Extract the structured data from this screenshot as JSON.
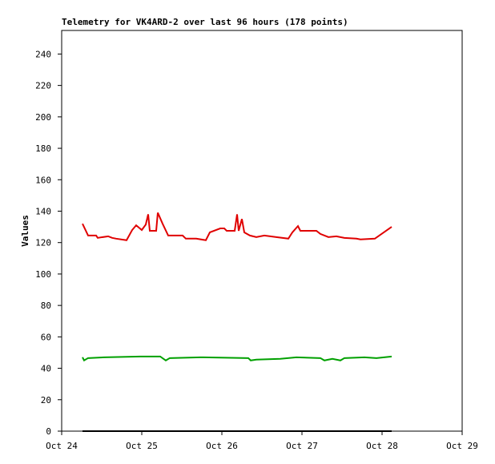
{
  "chart_data": {
    "type": "line",
    "title": "Telemetry for VK4ARD-2 over last 96 hours (178 points)",
    "y_label": "Values",
    "xlim": [
      24,
      29
    ],
    "xticks": [
      {
        "value": 24,
        "label": "Oct 24"
      },
      {
        "value": 25,
        "label": "Oct 25"
      },
      {
        "value": 26,
        "label": "Oct 26"
      },
      {
        "value": 27,
        "label": "Oct 27"
      },
      {
        "value": 28,
        "label": "Oct 28"
      },
      {
        "value": 29,
        "label": "Oct 29"
      }
    ],
    "ylim": [
      0,
      255
    ],
    "yticks": [
      0,
      20,
      40,
      60,
      80,
      100,
      120,
      140,
      160,
      180,
      200,
      220,
      240
    ],
    "series": [
      {
        "color": "#e00000",
        "x": [
          24.26,
          24.33,
          24.43,
          24.45,
          24.58,
          24.63,
          24.68,
          24.81,
          24.88,
          24.93,
          25.0,
          25.05,
          25.08,
          25.1,
          25.18,
          25.2,
          25.26,
          25.33,
          25.51,
          25.55,
          25.68,
          25.8,
          25.85,
          25.98,
          26.03,
          26.06,
          26.16,
          26.19,
          26.21,
          26.25,
          26.28,
          26.35,
          26.43,
          26.53,
          26.68,
          26.83,
          26.88,
          26.95,
          26.98,
          27.18,
          27.23,
          27.33,
          27.43,
          27.53,
          27.68,
          27.73,
          27.91,
          28.12
        ],
        "values": [
          132,
          124.5,
          124.5,
          123,
          124,
          123,
          122.5,
          121.5,
          128,
          131,
          128,
          131.5,
          138,
          127.5,
          127.5,
          139,
          132,
          124.5,
          124.5,
          122.5,
          122.5,
          121.5,
          126.5,
          129,
          129,
          127.5,
          127.5,
          138,
          127.5,
          135,
          126.5,
          124.5,
          123.5,
          124.5,
          123.5,
          122.5,
          126.5,
          130.5,
          127.5,
          127.5,
          125.5,
          123.5,
          124,
          123,
          122.5,
          122,
          122.5,
          130
        ]
      },
      {
        "color": "#00a000",
        "x": [
          24.26,
          24.28,
          24.33,
          24.53,
          24.98,
          25.23,
          25.3,
          25.35,
          25.73,
          26.33,
          26.36,
          26.43,
          26.73,
          26.93,
          27.23,
          27.28,
          27.38,
          27.48,
          27.53,
          27.78,
          27.93,
          28.12
        ],
        "values": [
          47,
          45,
          46.5,
          47,
          47.5,
          47.5,
          45,
          46.5,
          47,
          46.5,
          45,
          45.5,
          46,
          47,
          46.5,
          45,
          46,
          45,
          46.5,
          47,
          46.5,
          47.5
        ]
      },
      {
        "color": "#000000",
        "x": [
          24.26,
          28.12
        ],
        "values": [
          0,
          0
        ]
      }
    ]
  }
}
